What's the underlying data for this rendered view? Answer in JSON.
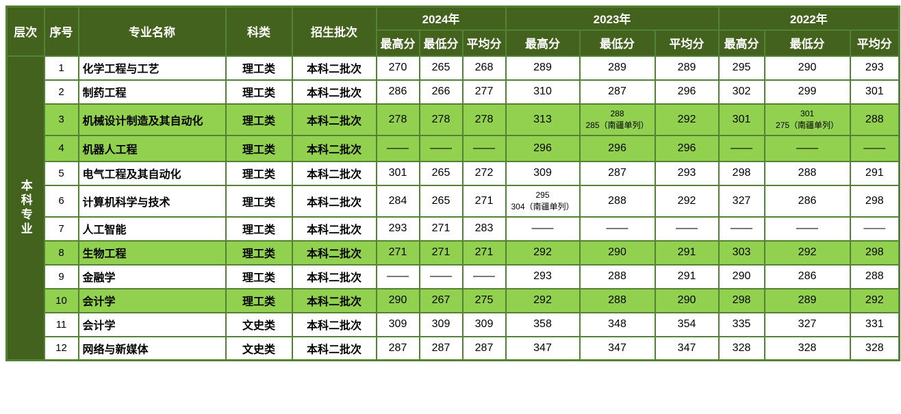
{
  "colors": {
    "header_bg": "#43621e",
    "highlight_bg": "#92d050",
    "border": "#548235",
    "header_text": "#ffffff",
    "body_text": "#000000"
  },
  "table": {
    "level_label": "本科专业",
    "columns": {
      "level": "层次",
      "no": "序号",
      "major": "专业名称",
      "category": "科类",
      "batch": "招生批次"
    },
    "year_groups": [
      {
        "year": "2024年"
      },
      {
        "year": "2023年"
      },
      {
        "year": "2022年"
      }
    ],
    "score_headers": [
      "最高分",
      "最低分",
      "平均分"
    ],
    "rows": [
      {
        "no": "1",
        "major": "化学工程与工艺",
        "category": "理工类",
        "batch": "本科二批次",
        "highlight": false,
        "scores": [
          "270",
          "265",
          "268",
          "289",
          "289",
          "289",
          "295",
          "290",
          "293"
        ]
      },
      {
        "no": "2",
        "major": "制药工程",
        "category": "理工类",
        "batch": "本科二批次",
        "highlight": false,
        "scores": [
          "286",
          "266",
          "277",
          "310",
          "287",
          "296",
          "302",
          "299",
          "301"
        ]
      },
      {
        "no": "3",
        "major": "机械设计制造及其自动化",
        "category": "理工类",
        "batch": "本科二批次",
        "highlight": true,
        "scores": [
          "278",
          "278",
          "278",
          "313",
          "288\n285（南疆单列）",
          "292",
          "301",
          "301\n275（南疆单列）",
          "288"
        ]
      },
      {
        "no": "4",
        "major": "机器人工程",
        "category": "理工类",
        "batch": "本科二批次",
        "highlight": true,
        "scores": [
          "——",
          "——",
          "——",
          "296",
          "296",
          "296",
          "——",
          "——",
          "——"
        ]
      },
      {
        "no": "5",
        "major": "电气工程及其自动化",
        "category": "理工类",
        "batch": "本科二批次",
        "highlight": false,
        "scores": [
          "301",
          "265",
          "272",
          "309",
          "287",
          "293",
          "298",
          "288",
          "291"
        ]
      },
      {
        "no": "6",
        "major": "计算机科学与技术",
        "category": "理工类",
        "batch": "本科二批次",
        "highlight": false,
        "scores": [
          "284",
          "265",
          "271",
          "295\n304（南疆单列）",
          "288",
          "292",
          "327",
          "286",
          "298"
        ]
      },
      {
        "no": "7",
        "major": "人工智能",
        "category": "理工类",
        "batch": "本科二批次",
        "highlight": false,
        "scores": [
          "293",
          "271",
          "283",
          "——",
          "——",
          "——",
          "——",
          "——",
          "——"
        ]
      },
      {
        "no": "8",
        "major": "生物工程",
        "category": "理工类",
        "batch": "本科二批次",
        "highlight": true,
        "scores": [
          "271",
          "271",
          "271",
          "292",
          "290",
          "291",
          "303",
          "292",
          "298"
        ]
      },
      {
        "no": "9",
        "major": "金融学",
        "category": "理工类",
        "batch": "本科二批次",
        "highlight": false,
        "scores": [
          "——",
          "——",
          "——",
          "293",
          "288",
          "291",
          "290",
          "286",
          "288"
        ]
      },
      {
        "no": "10",
        "major": "会计学",
        "category": "理工类",
        "batch": "本科二批次",
        "highlight": true,
        "scores": [
          "290",
          "267",
          "275",
          "292",
          "288",
          "290",
          "298",
          "289",
          "292"
        ]
      },
      {
        "no": "11",
        "major": "会计学",
        "category": "文史类",
        "batch": "本科二批次",
        "highlight": false,
        "scores": [
          "309",
          "309",
          "309",
          "358",
          "348",
          "354",
          "335",
          "327",
          "331"
        ]
      },
      {
        "no": "12",
        "major": "网络与新媒体",
        "category": "文史类",
        "batch": "本科二批次",
        "highlight": false,
        "scores": [
          "287",
          "287",
          "287",
          "347",
          "347",
          "347",
          "328",
          "328",
          "328"
        ]
      }
    ]
  }
}
